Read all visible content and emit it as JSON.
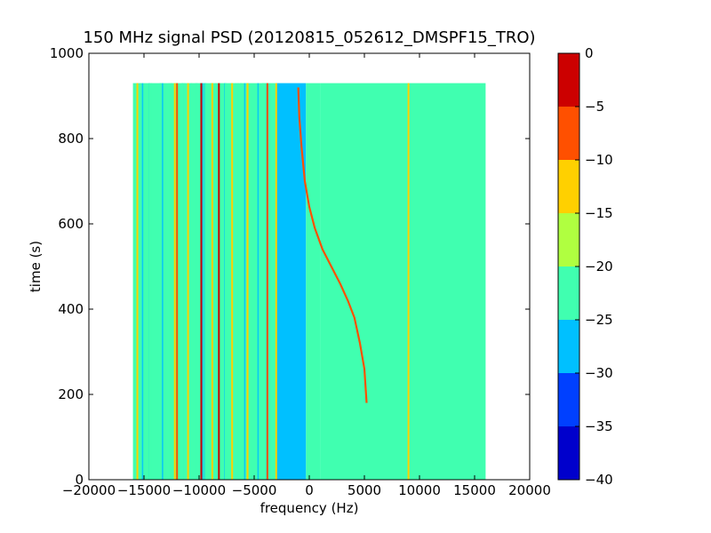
{
  "chart_data": {
    "type": "heatmap",
    "title": "150 MHz signal PSD (20120815_052612_DMSPF15_TRO)",
    "xlabel": "frequency (Hz)",
    "ylabel": "time (s)",
    "xlim": [
      -20000,
      20000
    ],
    "ylim": [
      0,
      1000
    ],
    "x_ticks": [
      -20000,
      -15000,
      -10000,
      -5000,
      0,
      5000,
      10000,
      15000,
      20000
    ],
    "x_tick_labels": [
      "−20000",
      "−15000",
      "−10000",
      "−5000",
      "0",
      "5000",
      "10000",
      "15000",
      "20000"
    ],
    "y_ticks": [
      0,
      200,
      400,
      600,
      800,
      1000
    ],
    "y_tick_labels": [
      "0",
      "200",
      "400",
      "600",
      "800",
      "1000"
    ],
    "data_extent": {
      "x": [
        -16000,
        16000
      ],
      "y": [
        0,
        930
      ]
    },
    "colorbar": {
      "levels": [
        -40,
        -35,
        -30,
        -25,
        -20,
        -15,
        -10,
        -5,
        0
      ],
      "tick_labels": [
        "−40",
        "−35",
        "−30",
        "−25",
        "−20",
        "−15",
        "−10",
        "−5",
        "0"
      ],
      "colors": [
        "#0000cc",
        "#0040ff",
        "#00c0ff",
        "#40ffb0",
        "#b0ff40",
        "#ffd000",
        "#ff5000",
        "#cc0000"
      ]
    },
    "bands": [
      {
        "x": [
          -16000,
          -3000
        ],
        "level": -25,
        "description": "mixed background region"
      },
      {
        "x": [
          -3000,
          -300
        ],
        "level": -30
      },
      {
        "x": [
          -300,
          1000
        ],
        "level": -25
      },
      {
        "x": [
          1000,
          16000
        ],
        "level": -25
      }
    ],
    "vertical_lines": [
      {
        "x": -15600,
        "level": -15
      },
      {
        "x": -14500,
        "level": -25
      },
      {
        "x": -13500,
        "level": -25
      },
      {
        "x": -12200,
        "level": -15
      },
      {
        "x": -12000,
        "level": -10
      },
      {
        "x": -11500,
        "level": -25
      },
      {
        "x": -11000,
        "level": -15
      },
      {
        "x": -10200,
        "level": -25
      },
      {
        "x": -9800,
        "level": -5
      },
      {
        "x": -9400,
        "level": -25
      },
      {
        "x": -8800,
        "level": -15
      },
      {
        "x": -8200,
        "level": -5
      },
      {
        "x": -7600,
        "level": -25
      },
      {
        "x": -7000,
        "level": -15
      },
      {
        "x": -6200,
        "level": -25
      },
      {
        "x": -5600,
        "level": -15
      },
      {
        "x": -4200,
        "level": -25
      },
      {
        "x": -3800,
        "level": -10
      },
      {
        "x": -3000,
        "level": -15
      },
      {
        "x": 9000,
        "level": -15
      }
    ],
    "doppler_trace": {
      "level": -10,
      "points": [
        {
          "x": -1000,
          "y": 920
        },
        {
          "x": -900,
          "y": 850
        },
        {
          "x": -700,
          "y": 780
        },
        {
          "x": -400,
          "y": 700
        },
        {
          "x": 0,
          "y": 640
        },
        {
          "x": 500,
          "y": 590
        },
        {
          "x": 1200,
          "y": 540
        },
        {
          "x": 2000,
          "y": 500
        },
        {
          "x": 2800,
          "y": 460
        },
        {
          "x": 3500,
          "y": 420
        },
        {
          "x": 4100,
          "y": 380
        },
        {
          "x": 4600,
          "y": 320
        },
        {
          "x": 5000,
          "y": 260
        },
        {
          "x": 5200,
          "y": 180
        }
      ]
    }
  }
}
